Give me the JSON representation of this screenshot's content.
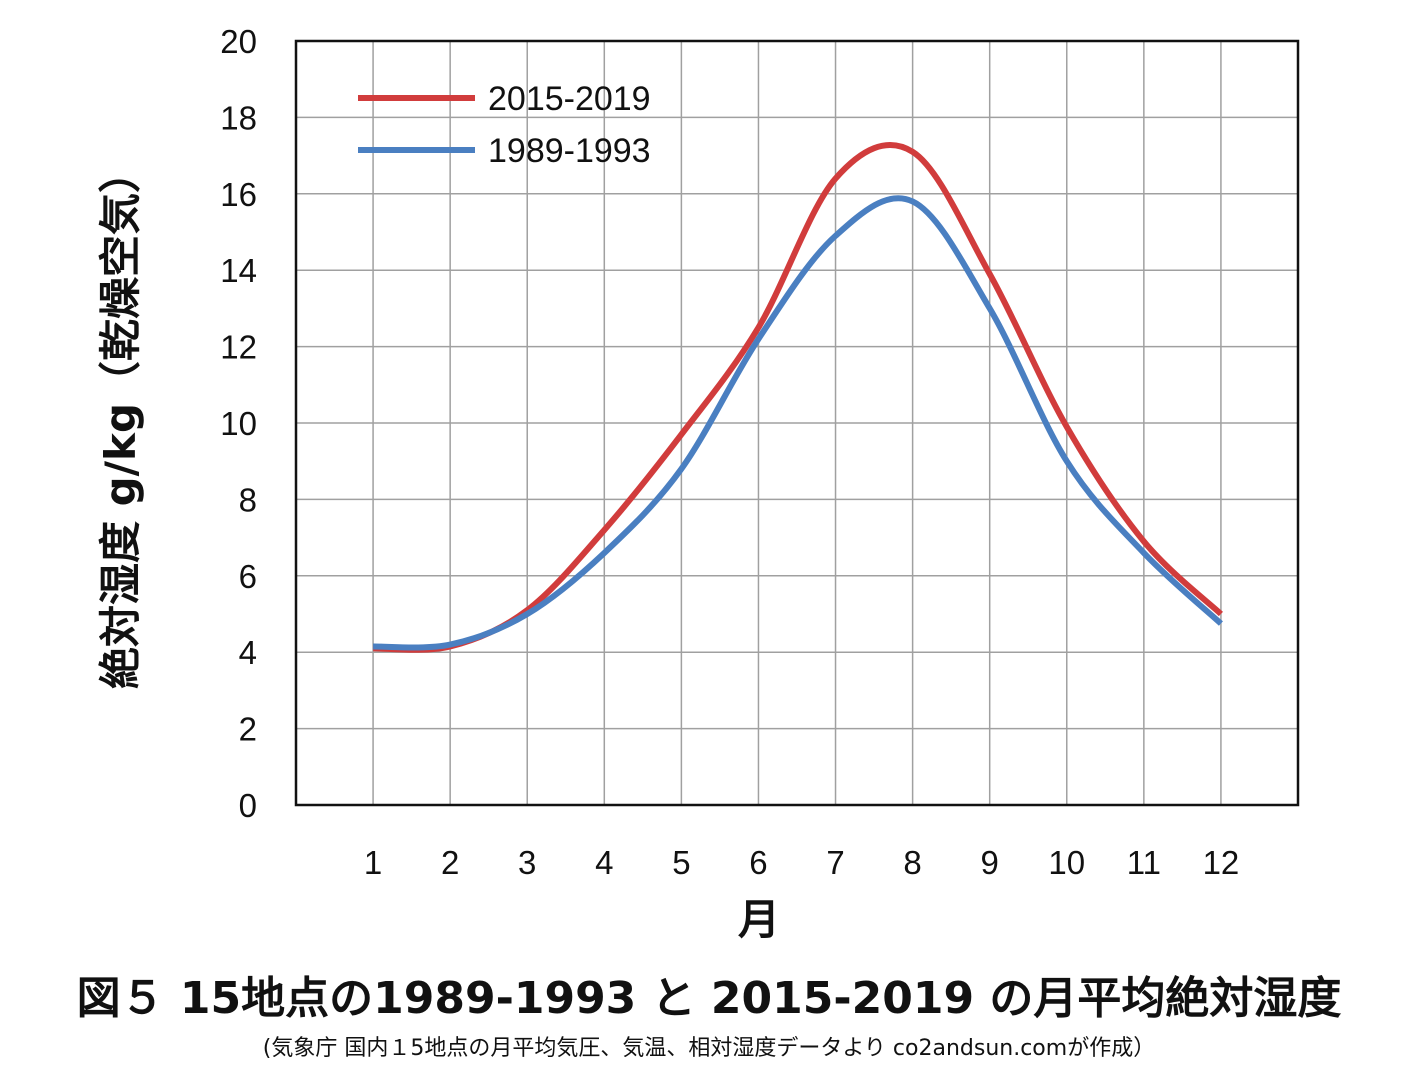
{
  "chart_data": {
    "type": "line",
    "categories": [
      "1",
      "2",
      "3",
      "4",
      "5",
      "6",
      "7",
      "8",
      "9",
      "10",
      "11",
      "12"
    ],
    "x": [
      1,
      2,
      3,
      4,
      5,
      6,
      7,
      8,
      9,
      10,
      11,
      12
    ],
    "series": [
      {
        "name": "2015-2019",
        "color": "#d13c3c",
        "values": [
          4.1,
          4.15,
          5.1,
          7.2,
          9.7,
          12.5,
          16.4,
          17.1,
          13.9,
          9.9,
          6.9,
          5.0
        ]
      },
      {
        "name": "1989-1993",
        "color": "#4a7fc1",
        "values": [
          4.15,
          4.2,
          5.0,
          6.6,
          8.8,
          12.2,
          14.9,
          15.8,
          13.0,
          9.0,
          6.6,
          4.75
        ]
      }
    ],
    "ylim": [
      0,
      20
    ],
    "yticks": [
      "0",
      "2",
      "4",
      "6",
      "8",
      "10",
      "12",
      "14",
      "16",
      "18",
      "20"
    ],
    "xlabel": "月",
    "ylabel": "絶対湿度 g/kg（乾燥空気）",
    "grid": true,
    "legend_position": "top-left",
    "title": "図５ 15地点の1989-1993 と 2015-2019 の月平均絶対湿度",
    "subtitle": "(気象庁 国内１5地点の月平均気圧、気温、相対湿度データより co2andsun.comが作成）"
  }
}
